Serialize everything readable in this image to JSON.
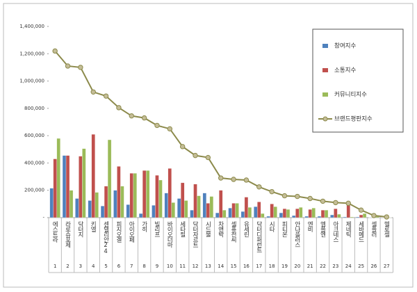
{
  "chart_data": {
    "type": "bar",
    "categories": [
      "에스트라",
      "라로슈포제",
      "닥터지",
      "키엘",
      "센텔리안24",
      "피지오겔",
      "아이오페",
      "가히",
      "빌리프",
      "바이오더마",
      "세타필",
      "닥터자르트",
      "시드물",
      "차앤박",
      "셀퓨전씨",
      "유세린",
      "닥터디퍼런트",
      "시타",
      "피티온",
      "안나플러스",
      "엔비",
      "엠플엔",
      "아크네스",
      "제네틱",
      "세바메드",
      "셀플러",
      "헬로셀"
    ],
    "ranks": [
      1,
      2,
      3,
      4,
      5,
      6,
      7,
      8,
      9,
      10,
      11,
      12,
      13,
      14,
      15,
      16,
      17,
      18,
      19,
      20,
      21,
      22,
      23,
      24,
      25,
      26,
      27
    ],
    "series": [
      {
        "name": "참여지수",
        "type": "bar",
        "color": "#4f81bd",
        "values": [
          215000,
          455000,
          140000,
          125000,
          85000,
          200000,
          95000,
          30000,
          90000,
          180000,
          140000,
          55000,
          180000,
          35000,
          70000,
          45000,
          80000,
          10000,
          35000,
          15000,
          10000,
          10000,
          20000,
          5000,
          5000,
          2000,
          1000
        ]
      },
      {
        "name": "소통지수",
        "type": "bar",
        "color": "#c0504d",
        "values": [
          430000,
          455000,
          450000,
          610000,
          230000,
          375000,
          325000,
          345000,
          310000,
          360000,
          255000,
          245000,
          105000,
          200000,
          105000,
          150000,
          115000,
          100000,
          65000,
          65000,
          60000,
          55000,
          65000,
          95000,
          20000,
          5000,
          2000
        ]
      },
      {
        "name": "커뮤니티지수",
        "type": "bar",
        "color": "#9bbb59",
        "values": [
          580000,
          200000,
          505000,
          185000,
          570000,
          230000,
          325000,
          345000,
          275000,
          110000,
          125000,
          160000,
          155000,
          55000,
          105000,
          75000,
          30000,
          80000,
          60000,
          75000,
          70000,
          55000,
          25000,
          5000,
          30000,
          8000,
          2000
        ]
      },
      {
        "name": "브랜드평판지수",
        "type": "line",
        "color": "#8c8a4b",
        "values": [
          1220000,
          1110000,
          1100000,
          920000,
          890000,
          805000,
          745000,
          730000,
          675000,
          650000,
          520000,
          455000,
          440000,
          290000,
          280000,
          275000,
          225000,
          190000,
          160000,
          155000,
          140000,
          120000,
          110000,
          105000,
          55000,
          15000,
          5000
        ]
      }
    ],
    "ylim": [
      0,
      1400000
    ],
    "yticks": [
      {
        "value": 0,
        "label": "-"
      },
      {
        "value": 200000,
        "label": "200,000"
      },
      {
        "value": 400000,
        "label": "400,000"
      },
      {
        "value": 600000,
        "label": "600,000"
      },
      {
        "value": 800000,
        "label": "800,000"
      },
      {
        "value": 1000000,
        "label": "1,000,000"
      },
      {
        "value": 1200000,
        "label": "1,200,000"
      },
      {
        "value": 1400000,
        "label": "1,400,000"
      }
    ],
    "grid": false
  }
}
